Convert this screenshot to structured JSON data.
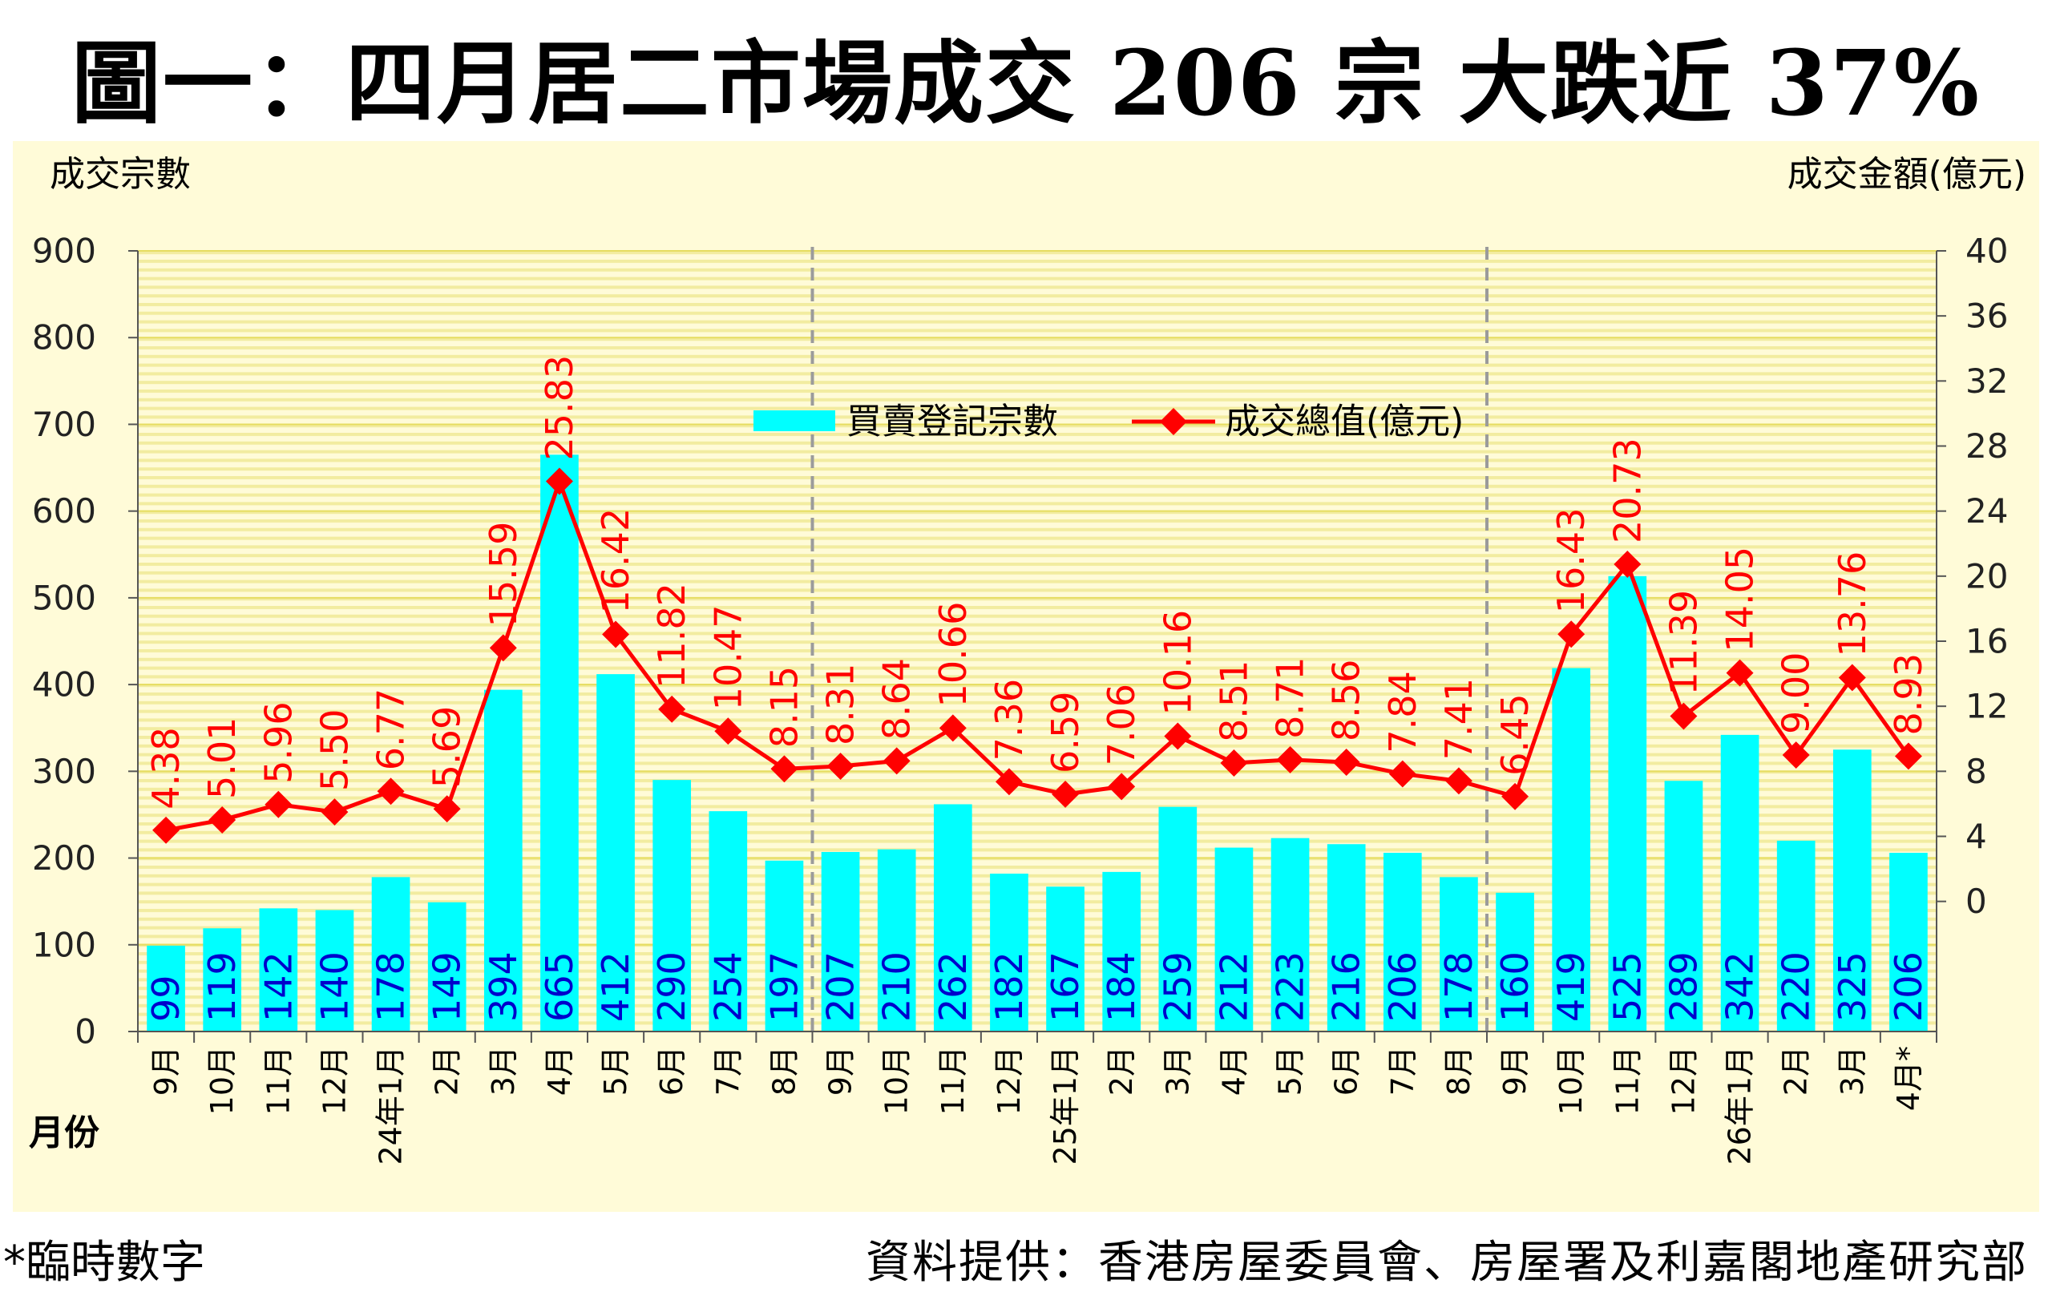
{
  "title": "圖一：四月居二市場成交 206 宗  大跌近 37%",
  "footnote": "*臨時數字",
  "source": "資料提供：香港房屋委員會、房屋署及利嘉閣地產研究部",
  "colors": {
    "bar": "#00ffff",
    "line": "#ff0000",
    "bar_label": "#0000cc",
    "line_label": "#ff0000",
    "plot_bg": "#fffbd8",
    "stripe": "#f2eca0",
    "grid": "#e6dd60",
    "divider": "#9b9b9b"
  },
  "chart_data": {
    "type": "bar+line",
    "ylabel_left": "成交宗數",
    "ylabel_right": "成交金額(億元)",
    "xlabel": "月份",
    "ylim_left": [
      0,
      900
    ],
    "yticks_left": [
      0,
      100,
      200,
      300,
      400,
      500,
      600,
      700,
      800,
      900
    ],
    "ylim_right": [
      -8,
      40
    ],
    "yticks_right": [
      0,
      4,
      8,
      12,
      16,
      20,
      24,
      28,
      32,
      36,
      40
    ],
    "grid": true,
    "legend_position": "top-center",
    "categories": [
      "9月",
      "10月",
      "11月",
      "12月",
      "24年1月",
      "2月",
      "3月",
      "4月",
      "5月",
      "6月",
      "7月",
      "8月",
      "9月",
      "10月",
      "11月",
      "12月",
      "25年1月",
      "2月",
      "3月",
      "4月",
      "5月",
      "6月",
      "7月",
      "8月",
      "9月",
      "10月",
      "11月",
      "12月",
      "26年1月",
      "2月",
      "3月",
      "4月*"
    ],
    "year_dividers_after_index": [
      11,
      23
    ],
    "series": [
      {
        "name": "買賣登記宗數",
        "type": "bar",
        "axis": "left",
        "values": [
          99,
          119,
          142,
          140,
          178,
          149,
          394,
          665,
          412,
          290,
          254,
          197,
          207,
          210,
          262,
          182,
          167,
          184,
          259,
          212,
          223,
          216,
          206,
          178,
          160,
          419,
          525,
          289,
          342,
          220,
          325,
          206
        ],
        "labels": [
          "99",
          "119",
          "142",
          "140",
          "178",
          "149",
          "394",
          "665",
          "412",
          "290",
          "254",
          "197",
          "207",
          "210",
          "262",
          "182",
          "167",
          "184",
          "259",
          "212",
          "223",
          "216",
          "206",
          "178",
          "160",
          "419",
          "525",
          "289",
          "342",
          "220",
          "325",
          "206"
        ]
      },
      {
        "name": "成交總值(億元)",
        "type": "line",
        "axis": "right",
        "values": [
          4.38,
          5.01,
          5.96,
          5.5,
          6.77,
          5.69,
          15.59,
          25.83,
          16.42,
          11.82,
          10.47,
          8.15,
          8.31,
          8.64,
          10.66,
          7.36,
          6.59,
          7.06,
          10.16,
          8.51,
          8.71,
          8.56,
          7.84,
          7.41,
          6.45,
          16.43,
          20.73,
          11.39,
          14.05,
          9.0,
          13.76,
          8.93
        ],
        "labels": [
          "4.38",
          "5.01",
          "5.96",
          "5.50",
          "6.77",
          "5.69",
          "15.59",
          "25.83",
          "16.42",
          "11.82",
          "10.47",
          "8.15",
          "8.31",
          "8.64",
          "10.66",
          "7.36",
          "6.59",
          "7.06",
          "10.16",
          "8.51",
          "8.71",
          "8.56",
          "7.84",
          "7.41",
          "6.45",
          "16.43",
          "20.73",
          "11.39",
          "14.05",
          "9.00",
          "13.76",
          "8.93"
        ]
      }
    ]
  }
}
